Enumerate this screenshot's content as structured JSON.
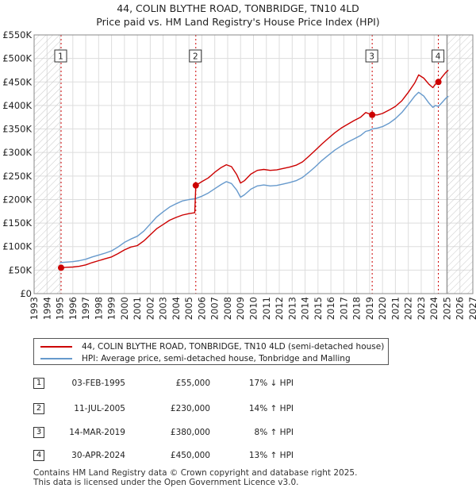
{
  "title_line1": "44, COLIN BLYTHE ROAD, TONBRIDGE, TN10 4LD",
  "title_line2": "Price paid vs. HM Land Registry's House Price Index (HPI)",
  "colors": {
    "property": "#cc0000",
    "hpi": "#6699cc",
    "grid": "#dddddd",
    "hatch": "#bbbbbb",
    "marker_line": "#cc0000",
    "future": "#999999"
  },
  "chart_data": {
    "type": "line",
    "title": "Price paid vs. HM Land Registry's House Price Index (HPI)",
    "xlim": [
      1993,
      2027
    ],
    "ylim": [
      0,
      550000
    ],
    "x_ticks": [
      "1993",
      "1994",
      "1995",
      "1996",
      "1997",
      "1998",
      "1999",
      "2000",
      "2001",
      "2002",
      "2003",
      "2004",
      "2005",
      "2006",
      "2007",
      "2008",
      "2009",
      "2010",
      "2011",
      "2012",
      "2013",
      "2014",
      "2015",
      "2016",
      "2017",
      "2018",
      "2019",
      "2020",
      "2021",
      "2022",
      "2023",
      "2024",
      "2025",
      "2026",
      "2027"
    ],
    "y_ticks": [
      {
        "value": 0,
        "label": "£0"
      },
      {
        "value": 50000,
        "label": "£50K"
      },
      {
        "value": 100000,
        "label": "£100K"
      },
      {
        "value": 150000,
        "label": "£150K"
      },
      {
        "value": 200000,
        "label": "£200K"
      },
      {
        "value": 250000,
        "label": "£250K"
      },
      {
        "value": 300000,
        "label": "£300K"
      },
      {
        "value": 350000,
        "label": "£350K"
      },
      {
        "value": 400000,
        "label": "£400K"
      },
      {
        "value": 450000,
        "label": "£450K"
      },
      {
        "value": 500000,
        "label": "£500K"
      },
      {
        "value": 550000,
        "label": "£550K"
      }
    ],
    "hatched_before": 1995.09,
    "future_from": 2025.0,
    "series": [
      {
        "name": "44, COLIN BLYTHE ROAD, TONBRIDGE, TN10 4LD (semi-detached house)",
        "color": "#cc0000",
        "points": [
          [
            1995.09,
            55000
          ],
          [
            1995.5,
            56000
          ],
          [
            1996.0,
            56500
          ],
          [
            1996.5,
            58000
          ],
          [
            1997.0,
            61000
          ],
          [
            1997.5,
            66000
          ],
          [
            1998.0,
            70000
          ],
          [
            1998.5,
            74000
          ],
          [
            1999.0,
            78000
          ],
          [
            1999.5,
            85000
          ],
          [
            2000.0,
            93000
          ],
          [
            2000.5,
            99000
          ],
          [
            2001.0,
            102000
          ],
          [
            2001.5,
            112000
          ],
          [
            2002.0,
            125000
          ],
          [
            2002.5,
            138000
          ],
          [
            2003.0,
            147000
          ],
          [
            2003.5,
            156000
          ],
          [
            2004.0,
            162000
          ],
          [
            2004.5,
            167000
          ],
          [
            2005.0,
            170000
          ],
          [
            2005.45,
            172000
          ],
          [
            2005.53,
            230000
          ],
          [
            2006.0,
            238000
          ],
          [
            2006.5,
            246000
          ],
          [
            2007.0,
            258000
          ],
          [
            2007.5,
            268000
          ],
          [
            2007.9,
            274000
          ],
          [
            2008.3,
            270000
          ],
          [
            2008.7,
            253000
          ],
          [
            2009.0,
            235000
          ],
          [
            2009.3,
            240000
          ],
          [
            2009.8,
            254000
          ],
          [
            2010.3,
            262000
          ],
          [
            2010.8,
            264000
          ],
          [
            2011.3,
            262000
          ],
          [
            2011.8,
            263000
          ],
          [
            2012.3,
            266000
          ],
          [
            2012.8,
            269000
          ],
          [
            2013.3,
            273000
          ],
          [
            2013.8,
            280000
          ],
          [
            2014.3,
            292000
          ],
          [
            2014.8,
            305000
          ],
          [
            2015.3,
            318000
          ],
          [
            2015.8,
            330000
          ],
          [
            2016.3,
            342000
          ],
          [
            2016.8,
            352000
          ],
          [
            2017.3,
            360000
          ],
          [
            2017.8,
            368000
          ],
          [
            2018.3,
            375000
          ],
          [
            2018.7,
            385000
          ],
          [
            2019.0,
            382000
          ],
          [
            2019.2,
            380000
          ],
          [
            2019.6,
            380000
          ],
          [
            2020.0,
            383000
          ],
          [
            2020.5,
            390000
          ],
          [
            2021.0,
            398000
          ],
          [
            2021.5,
            410000
          ],
          [
            2022.0,
            428000
          ],
          [
            2022.5,
            448000
          ],
          [
            2022.8,
            465000
          ],
          [
            2023.2,
            458000
          ],
          [
            2023.6,
            445000
          ],
          [
            2023.9,
            438000
          ],
          [
            2024.1,
            445000
          ],
          [
            2024.33,
            450000
          ],
          [
            2024.6,
            460000
          ],
          [
            2024.9,
            470000
          ],
          [
            2025.1,
            475000
          ]
        ]
      },
      {
        "name": "HPI: Average price, semi-detached house, Tonbridge and Malling",
        "color": "#6699cc",
        "points": [
          [
            1995.0,
            66000
          ],
          [
            1995.5,
            67000
          ],
          [
            1996.0,
            68000
          ],
          [
            1996.5,
            70000
          ],
          [
            1997.0,
            73000
          ],
          [
            1997.5,
            78000
          ],
          [
            1998.0,
            82000
          ],
          [
            1998.5,
            86000
          ],
          [
            1999.0,
            91000
          ],
          [
            1999.5,
            99000
          ],
          [
            2000.0,
            109000
          ],
          [
            2000.5,
            116000
          ],
          [
            2001.0,
            122000
          ],
          [
            2001.5,
            133000
          ],
          [
            2002.0,
            148000
          ],
          [
            2002.5,
            163000
          ],
          [
            2003.0,
            174000
          ],
          [
            2003.5,
            184000
          ],
          [
            2004.0,
            191000
          ],
          [
            2004.5,
            197000
          ],
          [
            2005.0,
            200000
          ],
          [
            2005.5,
            202000
          ],
          [
            2006.0,
            207000
          ],
          [
            2006.5,
            214000
          ],
          [
            2007.0,
            223000
          ],
          [
            2007.5,
            232000
          ],
          [
            2007.9,
            238000
          ],
          [
            2008.3,
            234000
          ],
          [
            2008.7,
            220000
          ],
          [
            2009.0,
            205000
          ],
          [
            2009.3,
            210000
          ],
          [
            2009.8,
            222000
          ],
          [
            2010.3,
            229000
          ],
          [
            2010.8,
            231000
          ],
          [
            2011.3,
            229000
          ],
          [
            2011.8,
            230000
          ],
          [
            2012.3,
            233000
          ],
          [
            2012.8,
            236000
          ],
          [
            2013.3,
            240000
          ],
          [
            2013.8,
            247000
          ],
          [
            2014.3,
            258000
          ],
          [
            2014.8,
            270000
          ],
          [
            2015.3,
            283000
          ],
          [
            2015.8,
            294000
          ],
          [
            2016.3,
            305000
          ],
          [
            2016.8,
            314000
          ],
          [
            2017.3,
            322000
          ],
          [
            2017.8,
            329000
          ],
          [
            2018.3,
            336000
          ],
          [
            2018.7,
            345000
          ],
          [
            2019.0,
            347000
          ],
          [
            2019.2,
            350000
          ],
          [
            2019.6,
            352000
          ],
          [
            2020.0,
            355000
          ],
          [
            2020.5,
            362000
          ],
          [
            2021.0,
            372000
          ],
          [
            2021.5,
            385000
          ],
          [
            2022.0,
            402000
          ],
          [
            2022.5,
            420000
          ],
          [
            2022.8,
            428000
          ],
          [
            2023.2,
            420000
          ],
          [
            2023.6,
            405000
          ],
          [
            2023.9,
            396000
          ],
          [
            2024.1,
            400000
          ],
          [
            2024.33,
            398000
          ],
          [
            2024.6,
            406000
          ],
          [
            2024.9,
            415000
          ],
          [
            2025.1,
            420000
          ]
        ]
      }
    ],
    "sales": [
      {
        "label": "1",
        "date": "03-FEB-1995",
        "x": 1995.09,
        "price": 55000,
        "price_label": "£55,000",
        "hpi": "17% ↓ HPI"
      },
      {
        "label": "2",
        "date": "11-JUL-2005",
        "x": 2005.53,
        "price": 230000,
        "price_label": "£230,000",
        "hpi": "14% ↑ HPI"
      },
      {
        "label": "3",
        "date": "14-MAR-2019",
        "x": 2019.2,
        "price": 380000,
        "price_label": "£380,000",
        "hpi": "8% ↑ HPI"
      },
      {
        "label": "4",
        "date": "30-APR-2024",
        "x": 2024.33,
        "price": 450000,
        "price_label": "£450,000",
        "hpi": "13% ↑ HPI"
      }
    ]
  },
  "legend": {
    "property": "44, COLIN BLYTHE ROAD, TONBRIDGE, TN10 4LD (semi-detached house)",
    "hpi": "HPI: Average price, semi-detached house, Tonbridge and Malling"
  },
  "footer_line1": "Contains HM Land Registry data © Crown copyright and database right 2025.",
  "footer_line2": "This data is licensed under the Open Government Licence v3.0."
}
